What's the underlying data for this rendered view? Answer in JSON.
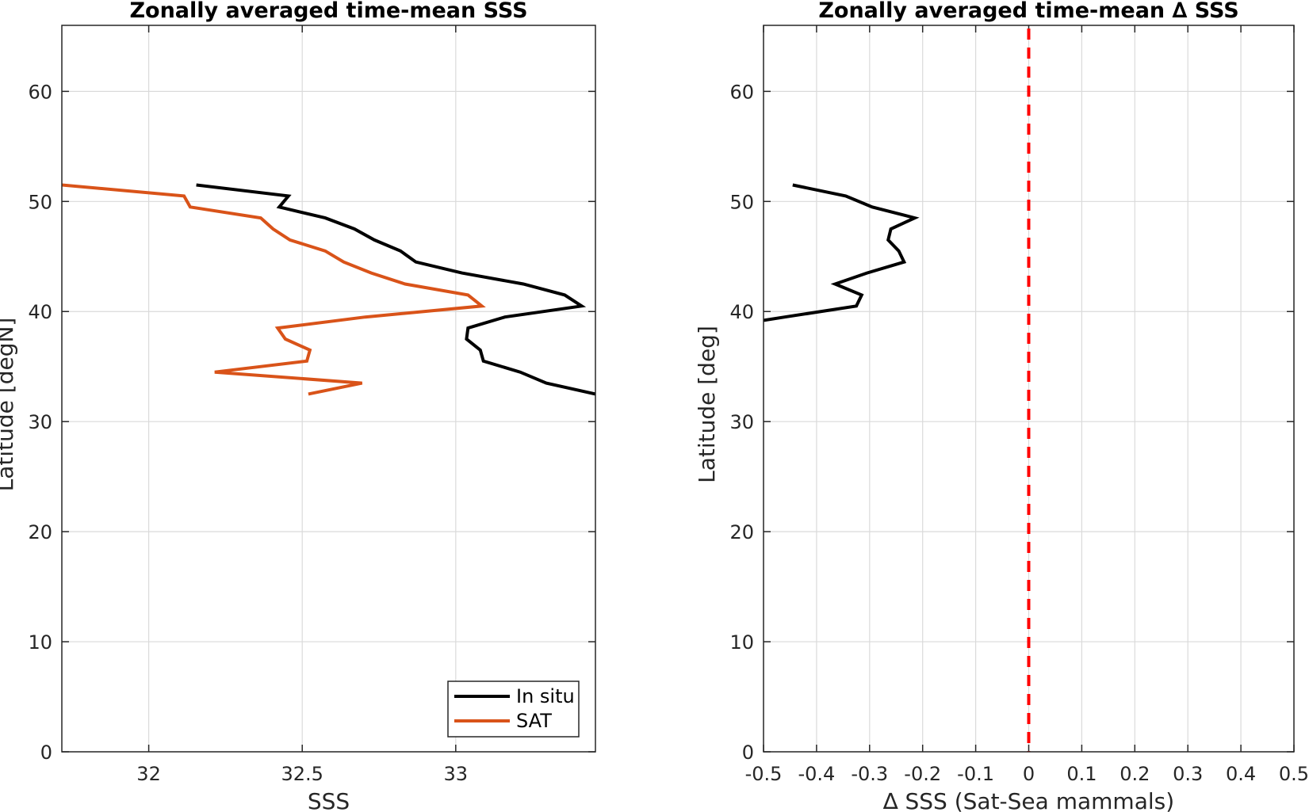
{
  "colors": {
    "insitu": "#000000",
    "sat": "#D95319",
    "zero_line": "#FF0000",
    "grid": "#DADADA",
    "axis": "#262626"
  },
  "chart_data": [
    {
      "type": "line",
      "title": "Zonally averaged time-mean SSS",
      "xlabel": "SSS",
      "ylabel": "Latitude [degN]",
      "xlim": [
        31.717,
        33.455
      ],
      "ylim": [
        0,
        66
      ],
      "xticks": [
        32,
        32.5,
        33
      ],
      "xticklabels": [
        "32",
        "32.5",
        "33"
      ],
      "yticks": [
        0,
        10,
        20,
        30,
        40,
        50,
        60
      ],
      "yticklabels": [
        "0",
        "10",
        "20",
        "30",
        "40",
        "50",
        "60"
      ],
      "grid": true,
      "legend_position": "bottom-right",
      "series": [
        {
          "name": "In situ",
          "color_key": "insitu",
          "points": [
            [
              32.155,
              51.5
            ],
            [
              32.455,
              50.5
            ],
            [
              32.425,
              49.5
            ],
            [
              32.575,
              48.5
            ],
            [
              32.67,
              47.5
            ],
            [
              32.735,
              46.5
            ],
            [
              32.82,
              45.5
            ],
            [
              32.87,
              44.5
            ],
            [
              33.02,
              43.5
            ],
            [
              33.22,
              42.5
            ],
            [
              33.355,
              41.5
            ],
            [
              33.41,
              40.5
            ],
            [
              33.16,
              39.5
            ],
            [
              33.04,
              38.5
            ],
            [
              33.035,
              37.5
            ],
            [
              33.08,
              36.5
            ],
            [
              33.09,
              35.5
            ],
            [
              33.21,
              34.5
            ],
            [
              33.295,
              33.5
            ],
            [
              33.455,
              32.5
            ]
          ]
        },
        {
          "name": "SAT",
          "color_key": "sat",
          "points": [
            [
              31.717,
              51.5
            ],
            [
              32.115,
              50.5
            ],
            [
              32.135,
              49.5
            ],
            [
              32.365,
              48.5
            ],
            [
              32.405,
              47.5
            ],
            [
              32.46,
              46.5
            ],
            [
              32.575,
              45.5
            ],
            [
              32.635,
              44.5
            ],
            [
              32.725,
              43.5
            ],
            [
              32.835,
              42.5
            ],
            [
              33.04,
              41.5
            ],
            [
              33.085,
              40.5
            ],
            [
              32.705,
              39.5
            ],
            [
              32.42,
              38.5
            ],
            [
              32.445,
              37.5
            ],
            [
              32.525,
              36.5
            ],
            [
              32.515,
              35.5
            ],
            [
              32.215,
              34.5
            ],
            [
              32.695,
              33.5
            ],
            [
              32.52,
              32.5
            ]
          ]
        }
      ]
    },
    {
      "type": "line",
      "title": "Zonally averaged time-mean ∆ SSS",
      "xlabel": "∆ SSS (Sat-Sea mammals)",
      "ylabel": "Latitude [deg]",
      "xlim": [
        -0.5,
        0.5
      ],
      "ylim": [
        0,
        66
      ],
      "xticks": [
        -0.5,
        -0.4,
        -0.3,
        -0.2,
        -0.1,
        0,
        0.1,
        0.2,
        0.3,
        0.4,
        0.5
      ],
      "xticklabels": [
        "-0.5",
        "-0.4",
        "-0.3",
        "-0.2",
        "-0.1",
        "0",
        "0.1",
        "0.2",
        "0.3",
        "0.4",
        "0.5"
      ],
      "yticks": [
        0,
        10,
        20,
        30,
        40,
        50,
        60
      ],
      "yticklabels": [
        "0",
        "10",
        "20",
        "30",
        "40",
        "50",
        "60"
      ],
      "grid": true,
      "reference_line": {
        "x": 0,
        "style": "dashed",
        "color_key": "zero_line"
      },
      "series": [
        {
          "color_key": "insitu",
          "points": [
            [
              -0.445,
              51.5
            ],
            [
              -0.345,
              50.5
            ],
            [
              -0.295,
              49.5
            ],
            [
              -0.215,
              48.5
            ],
            [
              -0.26,
              47.5
            ],
            [
              -0.265,
              46.5
            ],
            [
              -0.245,
              45.5
            ],
            [
              -0.235,
              44.5
            ],
            [
              -0.305,
              43.5
            ],
            [
              -0.365,
              42.5
            ],
            [
              -0.315,
              41.5
            ],
            [
              -0.325,
              40.5
            ],
            [
              -0.46,
              39.5
            ],
            [
              -0.5,
              39.2
            ]
          ]
        }
      ]
    }
  ]
}
